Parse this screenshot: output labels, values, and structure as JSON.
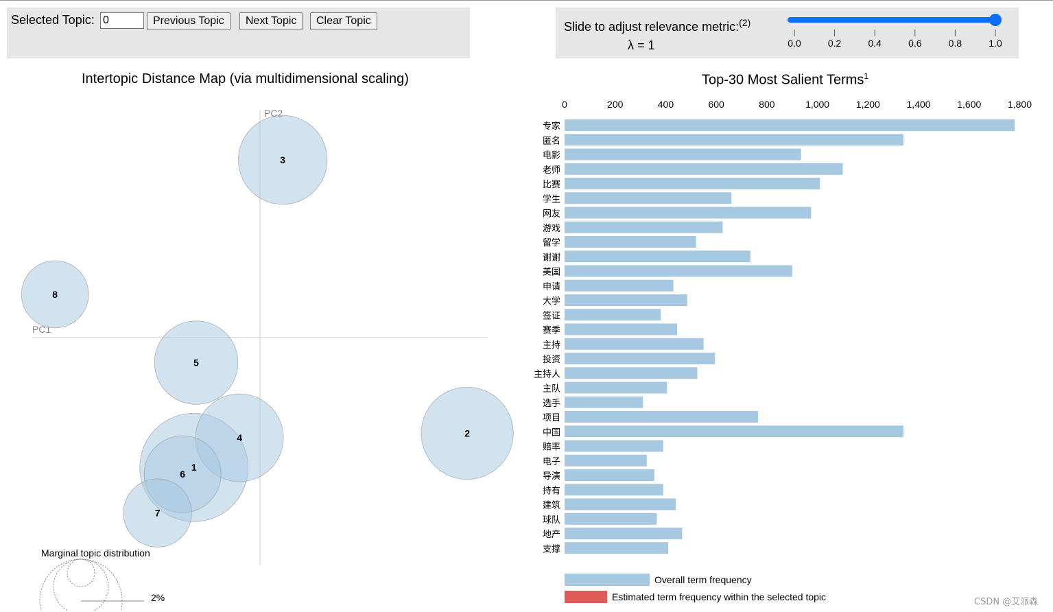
{
  "controls": {
    "selected_topic_label": "Selected Topic:",
    "selected_topic_value": "0",
    "previous_topic": "Previous Topic",
    "next_topic": "Next Topic",
    "clear_topic": "Clear Topic"
  },
  "relevance": {
    "label": "Slide to adjust relevance metric:",
    "footnote": "(2)",
    "lambda_text": "λ = 1",
    "lambda_value": 1,
    "ticks": [
      "0.0",
      "0.2",
      "0.4",
      "0.6",
      "0.8",
      "1.0"
    ],
    "accent": "#0d6efd"
  },
  "map": {
    "title": "Intertopic Distance Map (via multidimensional scaling)",
    "pc1_label": "PC1",
    "pc2_label": "PC2",
    "marginal_label": "Marginal topic distribution",
    "marginal_pct": "2%",
    "bubble_fill": "#a6c8e1",
    "topics": [
      {
        "label": "1",
        "pc1": -0.29,
        "pc2": -0.57,
        "size": 1.0
      },
      {
        "label": "2",
        "pc1": 0.91,
        "pc2": -0.42,
        "size": 0.85
      },
      {
        "label": "3",
        "pc1": 0.1,
        "pc2": 0.78,
        "size": 0.82
      },
      {
        "label": "4",
        "pc1": -0.09,
        "pc2": -0.44,
        "size": 0.81
      },
      {
        "label": "5",
        "pc1": -0.28,
        "pc2": -0.11,
        "size": 0.77
      },
      {
        "label": "6",
        "pc1": -0.34,
        "pc2": -0.6,
        "size": 0.71
      },
      {
        "label": "7",
        "pc1": -0.45,
        "pc2": -0.77,
        "size": 0.63
      },
      {
        "label": "8",
        "pc1": -0.9,
        "pc2": 0.19,
        "size": 0.62
      }
    ]
  },
  "chart_data": {
    "type": "bar",
    "title": "Top-30 Most Salient Terms",
    "title_footnote": "1",
    "orientation": "horizontal",
    "xlim": [
      0,
      1800
    ],
    "x_ticks": [
      "0",
      "200",
      "400",
      "600",
      "800",
      "1,000",
      "1,200",
      "1,400",
      "1,600",
      "1,800"
    ],
    "grid": false,
    "categories": [
      "专家",
      "匿名",
      "电影",
      "老师",
      "比赛",
      "学生",
      "网友",
      "游戏",
      "留学",
      "谢谢",
      "美国",
      "申请",
      "大学",
      "签证",
      "赛季",
      "主持",
      "投资",
      "主持人",
      "主队",
      "选手",
      "项目",
      "中国",
      "赔率",
      "电子",
      "导演",
      "持有",
      "建筑",
      "球队",
      "地产",
      "支撑"
    ],
    "series": [
      {
        "name": "Overall term frequency",
        "color": "#a6c8e1",
        "values": [
          1780,
          1340,
          935,
          1100,
          1010,
          660,
          975,
          625,
          520,
          735,
          900,
          430,
          485,
          380,
          445,
          550,
          595,
          525,
          405,
          310,
          765,
          1340,
          390,
          325,
          355,
          390,
          440,
          365,
          465,
          410
        ]
      }
    ],
    "legend": {
      "position": "bottom",
      "entries": [
        {
          "label": "Overall term frequency",
          "color": "#a6c8e1"
        },
        {
          "label": "Estimated term frequency within the selected topic",
          "color": "#e05a5a"
        }
      ]
    }
  },
  "watermark": "CSDN @艾派森"
}
